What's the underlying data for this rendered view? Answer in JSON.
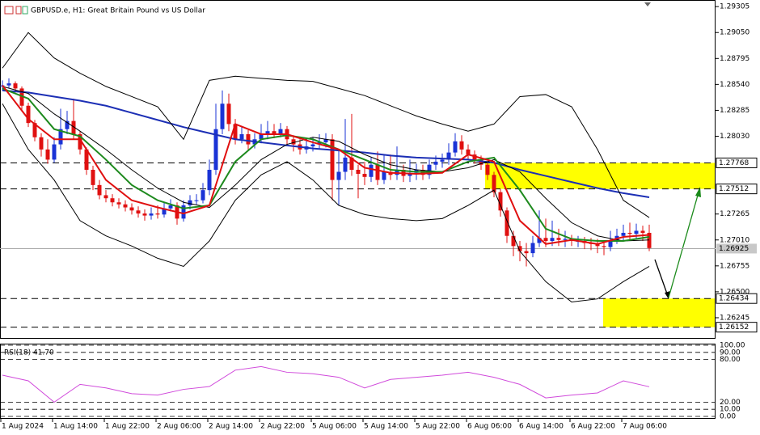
{
  "chart_data": {
    "type": "candlestick",
    "title": "GBPUSD.e, H1:  Great Britain Pound vs US Dollar",
    "categories": [
      "1 Aug 2024",
      null,
      null,
      null,
      null,
      null,
      null,
      null,
      "1 Aug 14:00",
      null,
      null,
      null,
      null,
      null,
      null,
      null,
      "1 Aug 22:00",
      null,
      null,
      null,
      null,
      null,
      null,
      null,
      "2 Aug 06:00",
      null,
      null,
      null,
      null,
      null,
      null,
      null,
      "2 Aug 14:00",
      null,
      null,
      null,
      null,
      null,
      null,
      null,
      "2 Aug 22:00",
      null,
      null,
      null,
      null,
      null,
      null,
      null,
      "5 Aug 06:00",
      null,
      null,
      null,
      null,
      null,
      null,
      null,
      "5 Aug 14:00",
      null,
      null,
      null,
      null,
      null,
      null,
      null,
      "5 Aug 22:00",
      null,
      null,
      null,
      null,
      null,
      null,
      null,
      "6 Aug 06:00",
      null,
      null,
      null,
      null,
      null,
      null,
      null,
      "6 Aug 14:00",
      null,
      null,
      null,
      null,
      null,
      null,
      null,
      "6 Aug 22:00",
      null,
      null,
      null,
      null,
      null,
      null,
      null,
      "7 Aug 06:00",
      null,
      null,
      null,
      null
    ],
    "candles": [
      [
        1.2852,
        1.2858,
        1.2848,
        1.2853
      ],
      [
        1.2853,
        1.286,
        1.285,
        1.2855
      ],
      [
        1.2855,
        1.2857,
        1.2846,
        1.285
      ],
      [
        1.285,
        1.2852,
        1.2828,
        1.2833
      ],
      [
        1.2833,
        1.2836,
        1.2812,
        1.2816
      ],
      [
        1.2816,
        1.2819,
        1.2798,
        1.2802
      ],
      [
        1.2802,
        1.2806,
        1.2783,
        1.279
      ],
      [
        1.279,
        1.28,
        1.2776,
        1.278
      ],
      [
        1.278,
        1.2802,
        1.2777,
        1.2795
      ],
      [
        1.2795,
        1.283,
        1.279,
        1.281
      ],
      [
        1.281,
        1.2828,
        1.2805,
        1.2818
      ],
      [
        1.2818,
        1.284,
        1.28,
        1.2805
      ],
      [
        1.2805,
        1.2808,
        1.2785,
        1.279
      ],
      [
        1.279,
        1.2792,
        1.2765,
        1.277
      ],
      [
        1.277,
        1.2774,
        1.275,
        1.2755
      ],
      [
        1.2755,
        1.276,
        1.2741,
        1.2745
      ],
      [
        1.2745,
        1.275,
        1.2738,
        1.2742
      ],
      [
        1.2742,
        1.2746,
        1.2734,
        1.2738
      ],
      [
        1.2738,
        1.2742,
        1.2732,
        1.2736
      ],
      [
        1.2736,
        1.274,
        1.2729,
        1.2733
      ],
      [
        1.2733,
        1.2737,
        1.2726,
        1.273
      ],
      [
        1.273,
        1.2734,
        1.2723,
        1.2727
      ],
      [
        1.2727,
        1.2731,
        1.272,
        1.2725
      ],
      [
        1.2725,
        1.2733,
        1.2721,
        1.2727
      ],
      [
        1.2727,
        1.2735,
        1.2722,
        1.2726
      ],
      [
        1.2726,
        1.2738,
        1.2723,
        1.2732
      ],
      [
        1.2732,
        1.2741,
        1.2729,
        1.2735
      ],
      [
        1.2735,
        1.2738,
        1.2716,
        1.2722
      ],
      [
        1.2722,
        1.274,
        1.2719,
        1.2735
      ],
      [
        1.2735,
        1.2745,
        1.2731,
        1.274
      ],
      [
        1.274,
        1.2746,
        1.2736,
        1.274
      ],
      [
        1.274,
        1.2757,
        1.2737,
        1.275
      ],
      [
        1.275,
        1.278,
        1.2745,
        1.277
      ],
      [
        1.277,
        1.2835,
        1.2765,
        1.281
      ],
      [
        1.281,
        1.2848,
        1.2805,
        1.2835
      ],
      [
        1.2835,
        1.2845,
        1.2808,
        1.2815
      ],
      [
        1.2815,
        1.282,
        1.2795,
        1.28
      ],
      [
        1.28,
        1.2812,
        1.2796,
        1.2805
      ],
      [
        1.2805,
        1.2809,
        1.279,
        1.2795
      ],
      [
        1.2795,
        1.2806,
        1.2791,
        1.28
      ],
      [
        1.28,
        1.2815,
        1.2796,
        1.2805
      ],
      [
        1.2805,
        1.2818,
        1.28,
        1.2808
      ],
      [
        1.2808,
        1.2815,
        1.2801,
        1.2805
      ],
      [
        1.2805,
        1.2816,
        1.2802,
        1.281
      ],
      [
        1.281,
        1.2813,
        1.2795,
        1.28
      ],
      [
        1.28,
        1.2804,
        1.2788,
        1.2795
      ],
      [
        1.2795,
        1.28,
        1.2785,
        1.279
      ],
      [
        1.279,
        1.2799,
        1.2786,
        1.2793
      ],
      [
        1.2793,
        1.2802,
        1.2788,
        1.2795
      ],
      [
        1.2795,
        1.2805,
        1.279,
        1.2797
      ],
      [
        1.2797,
        1.2806,
        1.2792,
        1.28
      ],
      [
        1.28,
        1.2805,
        1.274,
        1.276
      ],
      [
        1.276,
        1.279,
        1.2735,
        1.2768
      ],
      [
        1.2768,
        1.282,
        1.276,
        1.2782
      ],
      [
        1.2782,
        1.2825,
        1.2764,
        1.277
      ],
      [
        1.277,
        1.2775,
        1.2742,
        1.2766
      ],
      [
        1.2766,
        1.2778,
        1.2755,
        1.2763
      ],
      [
        1.2763,
        1.2782,
        1.2758,
        1.2775
      ],
      [
        1.2775,
        1.2788,
        1.2755,
        1.276
      ],
      [
        1.276,
        1.2785,
        1.2756,
        1.2768
      ],
      [
        1.2768,
        1.2785,
        1.276,
        1.2765
      ],
      [
        1.2765,
        1.2793,
        1.276,
        1.277
      ],
      [
        1.277,
        1.2775,
        1.2758,
        1.2764
      ],
      [
        1.2764,
        1.278,
        1.2758,
        1.2767
      ],
      [
        1.2767,
        1.2776,
        1.276,
        1.277
      ],
      [
        1.277,
        1.2775,
        1.276,
        1.2765
      ],
      [
        1.2765,
        1.278,
        1.2761,
        1.2775
      ],
      [
        1.2775,
        1.2784,
        1.277,
        1.2778
      ],
      [
        1.2778,
        1.2786,
        1.2772,
        1.278
      ],
      [
        1.278,
        1.2796,
        1.2775,
        1.2787
      ],
      [
        1.2787,
        1.2806,
        1.2783,
        1.2798
      ],
      [
        1.2798,
        1.2804,
        1.2785,
        1.279
      ],
      [
        1.279,
        1.2795,
        1.278,
        1.2785
      ],
      [
        1.2785,
        1.2789,
        1.2776,
        1.278
      ],
      [
        1.278,
        1.2784,
        1.277,
        1.2775
      ],
      [
        1.2775,
        1.2778,
        1.276,
        1.2765
      ],
      [
        1.2765,
        1.2768,
        1.2743,
        1.2748
      ],
      [
        1.2748,
        1.2751,
        1.2724,
        1.273
      ],
      [
        1.273,
        1.2733,
        1.2698,
        1.2705
      ],
      [
        1.2705,
        1.271,
        1.2685,
        1.2695
      ],
      [
        1.2695,
        1.27,
        1.268,
        1.269
      ],
      [
        1.269,
        1.2698,
        1.2675,
        1.2688
      ],
      [
        1.2688,
        1.2705,
        1.2684,
        1.2698
      ],
      [
        1.2698,
        1.273,
        1.2694,
        1.2703
      ],
      [
        1.2703,
        1.2722,
        1.2694,
        1.27
      ],
      [
        1.27,
        1.272,
        1.2695,
        1.2703
      ],
      [
        1.2703,
        1.2712,
        1.2695,
        1.2701
      ],
      [
        1.2701,
        1.271,
        1.2694,
        1.2702
      ],
      [
        1.2702,
        1.2706,
        1.2695,
        1.27
      ],
      [
        1.27,
        1.2705,
        1.2694,
        1.27
      ],
      [
        1.27,
        1.2704,
        1.2692,
        1.2698
      ],
      [
        1.2698,
        1.2703,
        1.2691,
        1.2697
      ],
      [
        1.2697,
        1.2702,
        1.2688,
        1.2695
      ],
      [
        1.2695,
        1.27,
        1.2686,
        1.2694
      ],
      [
        1.2694,
        1.271,
        1.269,
        1.27
      ],
      [
        1.27,
        1.2712,
        1.2697,
        1.2705
      ],
      [
        1.2705,
        1.2716,
        1.27,
        1.2708
      ],
      [
        1.2708,
        1.2718,
        1.2701,
        1.2707
      ],
      [
        1.2707,
        1.2717,
        1.2702,
        1.271
      ],
      [
        1.271,
        1.2715,
        1.27,
        1.2708
      ],
      [
        1.2708,
        1.2716,
        1.269,
        1.2693
      ]
    ],
    "up_color": "#1a33d6",
    "down_color": "#e01010",
    "line_x": [
      0,
      4,
      8,
      12,
      16,
      20,
      24,
      28,
      32,
      36,
      40,
      44,
      48,
      52,
      56,
      60,
      64,
      68,
      72,
      76,
      80,
      84,
      88,
      92,
      96,
      100
    ],
    "lines": [
      {
        "color": "#1c2fb5",
        "width": 2,
        "values": [
          1.2848,
          1.2846,
          1.2842,
          1.2838,
          1.2833,
          1.2826,
          1.2819,
          1.2812,
          1.2806,
          1.28,
          1.2797,
          1.2794,
          1.2791,
          1.2789,
          1.2787,
          1.2784,
          1.2782,
          1.2781,
          1.278,
          1.2777,
          1.277,
          1.2764,
          1.2758,
          1.2752,
          1.2747,
          1.2743
        ]
      },
      {
        "color": "#000000",
        "width": 1,
        "values": [
          1.287,
          1.2905,
          1.288,
          1.2865,
          1.2852,
          1.2842,
          1.2832,
          1.28,
          1.2858,
          1.2862,
          1.286,
          1.2858,
          1.2857,
          1.285,
          1.2843,
          1.2833,
          1.2823,
          1.2815,
          1.2808,
          1.2815,
          1.2842,
          1.2844,
          1.2832,
          1.279,
          1.274,
          1.2723
        ]
      },
      {
        "color": "#000000",
        "width": 1,
        "values": [
          1.2852,
          1.2845,
          1.2825,
          1.2808,
          1.279,
          1.277,
          1.2752,
          1.2738,
          1.2733,
          1.2755,
          1.278,
          1.2795,
          1.2802,
          1.2798,
          1.2785,
          1.2775,
          1.277,
          1.2768,
          1.2772,
          1.278,
          1.2768,
          1.2742,
          1.2718,
          1.2705,
          1.27,
          1.2701
        ]
      },
      {
        "color": "#000000",
        "width": 1,
        "values": [
          1.2835,
          1.279,
          1.276,
          1.272,
          1.2705,
          1.2695,
          1.2683,
          1.2675,
          1.27,
          1.274,
          1.2765,
          1.2778,
          1.276,
          1.2735,
          1.2726,
          1.2722,
          1.272,
          1.2722,
          1.2735,
          1.275,
          1.269,
          1.266,
          1.264,
          1.2643,
          1.266,
          1.2675
        ]
      },
      {
        "color": "#1e8a1e",
        "width": 2,
        "values": [
          1.285,
          1.284,
          1.281,
          1.2803,
          1.278,
          1.2755,
          1.274,
          1.2732,
          1.2735,
          1.2778,
          1.28,
          1.2804,
          1.28,
          1.279,
          1.278,
          1.277,
          1.2768,
          1.2768,
          1.2778,
          1.2782,
          1.275,
          1.2712,
          1.2702,
          1.27,
          1.27,
          1.2704
        ]
      },
      {
        "color": "#e01010",
        "width": 2,
        "values": [
          1.2853,
          1.282,
          1.28,
          1.28,
          1.276,
          1.274,
          1.2733,
          1.2727,
          1.2735,
          1.2815,
          1.2805,
          1.2805,
          1.2797,
          1.279,
          1.2772,
          1.2767,
          1.2766,
          1.2767,
          1.2785,
          1.2778,
          1.272,
          1.2697,
          1.2701,
          1.2697,
          1.2704,
          1.2706
        ]
      }
    ],
    "ylim": [
      1.2603,
      1.2937
    ],
    "yticks": [
      1.29305,
      {
        "value": 1.2905,
        "label": "1.29050"
      },
      1.28795,
      {
        "value": 1.2854,
        "label": "1.28540"
      },
      1.28285,
      {
        "value": 1.2803,
        "label": "1.28030"
      },
      1.27265,
      {
        "value": 1.2701,
        "label": "1.27010"
      },
      1.26755,
      {
        "value": 1.265,
        "label": "1.26500"
      },
      1.26245
    ],
    "levels": [
      1.27768,
      1.27512,
      1.26434,
      1.26152
    ],
    "zone_color": "#ffff00",
    "current_price": 1.26925,
    "rsi": {
      "label": "RSI(18) 41.70",
      "color": "#d04adb",
      "values": [
        58,
        50,
        20,
        45,
        40,
        32,
        30,
        38,
        42,
        65,
        70,
        62,
        60,
        55,
        40,
        52,
        55,
        58,
        62,
        55,
        45,
        26,
        30,
        33,
        50,
        41.7
      ],
      "ylim": [
        0,
        100
      ],
      "yticks": [
        {
          "value": 100,
          "label": "100.00"
        },
        {
          "value": 90,
          "label": "90.00"
        },
        {
          "value": 80,
          "label": "80.00"
        },
        {
          "value": 20,
          "label": "20.00"
        },
        {
          "value": 10,
          "label": "10.00"
        },
        {
          "value": 0,
          "label": "0.00"
        }
      ]
    }
  }
}
